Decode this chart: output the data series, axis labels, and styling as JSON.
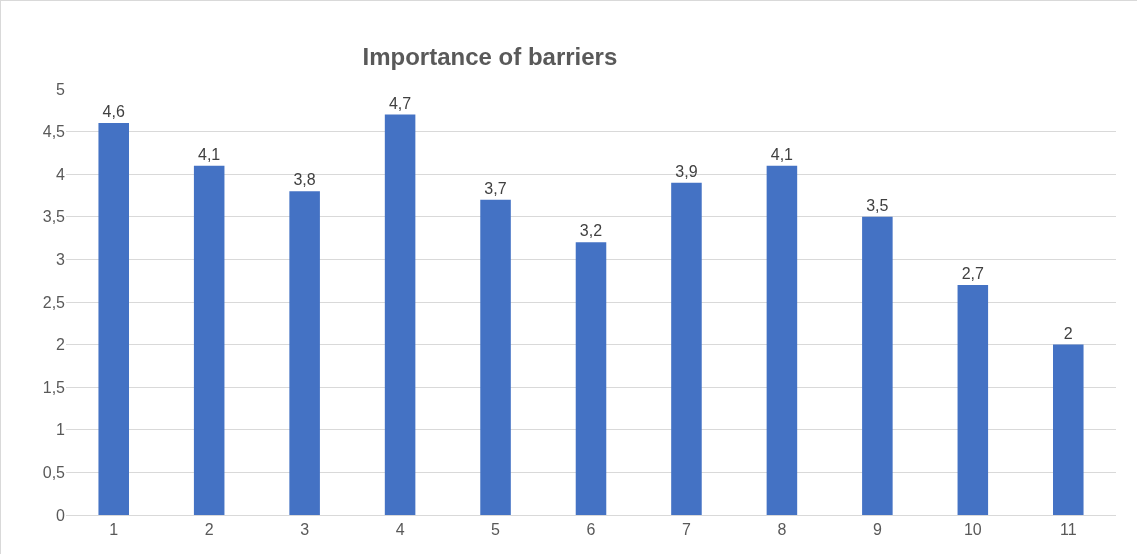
{
  "chart_data": {
    "type": "bar",
    "title": "Importance of barriers",
    "categories": [
      "1",
      "2",
      "3",
      "4",
      "5",
      "6",
      "7",
      "8",
      "9",
      "10",
      "11"
    ],
    "values": [
      4.6,
      4.1,
      3.8,
      4.7,
      3.7,
      3.2,
      3.9,
      4.1,
      3.5,
      2.7,
      2
    ],
    "value_labels": [
      "4,6",
      "4,1",
      "3,8",
      "4,7",
      "3,7",
      "3,2",
      "3,9",
      "4,1",
      "3,5",
      "2,7",
      "2"
    ],
    "color": "#4472c4",
    "ylim": [
      0,
      5
    ],
    "yticks": [
      0,
      {
        "value": 0.5,
        "label": "0,5"
      },
      1,
      {
        "value": 1.5,
        "label": "1,5"
      },
      2,
      {
        "value": 2.5,
        "label": "2,5"
      },
      3,
      {
        "value": 3.5,
        "label": "3,5"
      },
      4,
      {
        "value": 4.5,
        "label": "4,5"
      },
      5
    ],
    "grid": "y"
  }
}
